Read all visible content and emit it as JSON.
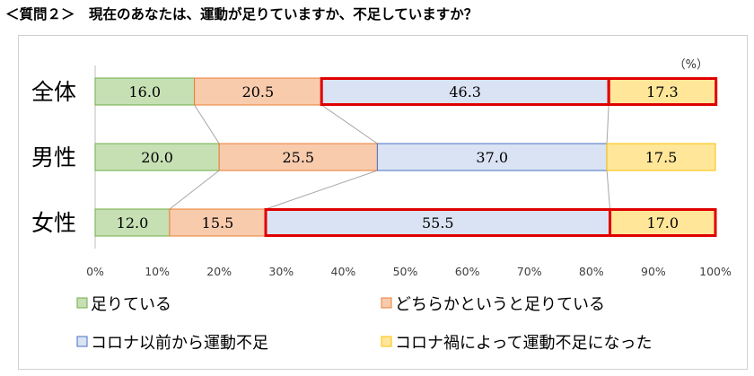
{
  "question": "＜質問２＞　現在のあなたは、運動が足りていますか、不足していますか？",
  "chart_data": {
    "type": "bar",
    "stacked": "percent",
    "orientation": "horizontal",
    "unit_label": "（%）",
    "categories": [
      "全体",
      "男性",
      "女性"
    ],
    "series": [
      {
        "name": "足りている",
        "color": "#c6e0b4",
        "border": "#70ad47",
        "values": [
          16.0,
          20.0,
          12.0
        ]
      },
      {
        "name": "どちらかというと足りている",
        "color": "#f8cbad",
        "border": "#ed7d31",
        "values": [
          20.5,
          25.5,
          15.5
        ]
      },
      {
        "name": "コロナ以前から運動不足",
        "color": "#dae3f3",
        "border": "#4472c4",
        "values": [
          46.3,
          37.0,
          55.5
        ]
      },
      {
        "name": "コロナ禍によって運動不足になった",
        "color": "#ffe699",
        "border": "#ffc000",
        "values": [
          17.3,
          17.5,
          17.0
        ]
      }
    ],
    "xlim": [
      0,
      100
    ],
    "x_ticks": [
      "0%",
      "10%",
      "20%",
      "30%",
      "40%",
      "50%",
      "60%",
      "70%",
      "80%",
      "90%",
      "100%"
    ],
    "highlight_color": "#e00000",
    "legend_placement": "bottom"
  }
}
